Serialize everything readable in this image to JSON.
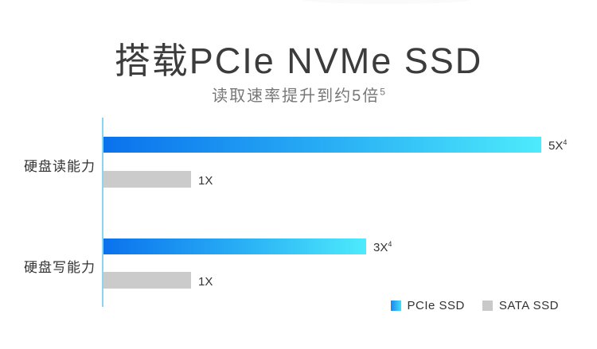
{
  "page": {
    "title": "搭载PCIe NVMe SSD",
    "subtitle": "读取速率提升到约5倍",
    "subtitle_superscript": "5"
  },
  "chart_data": {
    "type": "bar",
    "orientation": "horizontal",
    "title": "搭载PCIe NVMe SSD",
    "subtitle": "读取速率提升到约5倍⁵",
    "categories": [
      "硬盘读能力",
      "硬盘写能力"
    ],
    "series": [
      {
        "name": "PCIe SSD",
        "values": [
          5,
          3
        ],
        "value_labels": [
          {
            "text": "5X",
            "sup": "4"
          },
          {
            "text": "3X",
            "sup": "4"
          }
        ],
        "color_start": "#0a72ed",
        "color_end": "#4debfc"
      },
      {
        "name": "SATA SSD",
        "values": [
          1,
          1
        ],
        "value_labels": [
          {
            "text": "1X",
            "sup": ""
          },
          {
            "text": "1X",
            "sup": ""
          }
        ],
        "color": "#cbcbcb"
      }
    ],
    "xlim": [
      0,
      5
    ],
    "grid": false,
    "axis_color": "#8ad6f2",
    "legend_position": "bottom-right"
  }
}
